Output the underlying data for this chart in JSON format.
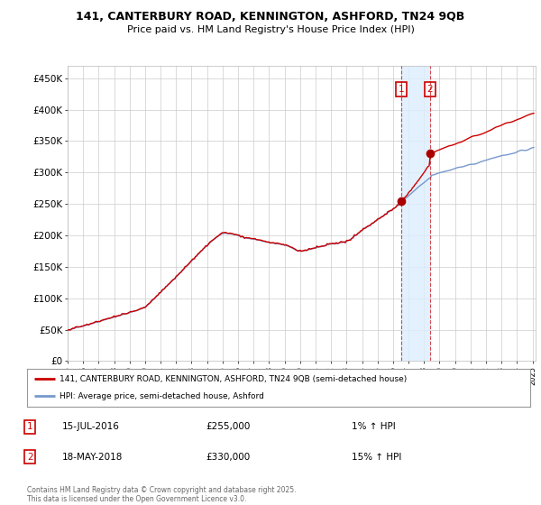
{
  "title1": "141, CANTERBURY ROAD, KENNINGTON, ASHFORD, TN24 9QB",
  "title2": "Price paid vs. HM Land Registry's House Price Index (HPI)",
  "legend_line1": "141, CANTERBURY ROAD, KENNINGTON, ASHFORD, TN24 9QB (semi-detached house)",
  "legend_line2": "HPI: Average price, semi-detached house, Ashford",
  "transaction1_date": "15-JUL-2016",
  "transaction1_price": 255000,
  "transaction1_hpi": "1% ↑ HPI",
  "transaction2_date": "18-MAY-2018",
  "transaction2_price": 330000,
  "transaction2_hpi": "15% ↑ HPI",
  "transaction1_x": 2016.54,
  "transaction2_x": 2018.38,
  "footer": "Contains HM Land Registry data © Crown copyright and database right 2025.\nThis data is licensed under the Open Government Licence v3.0.",
  "price_line_color": "#cc0000",
  "hpi_line_color": "#7799cc",
  "shade_color": "#ddeeff",
  "background_color": "#ffffff",
  "grid_color": "#cccccc",
  "ylim": [
    0,
    470000
  ],
  "xlim": [
    1995.0,
    2025.2
  ],
  "yticks": [
    0,
    50000,
    100000,
    150000,
    200000,
    250000,
    300000,
    350000,
    400000,
    450000
  ],
  "ytick_labels": [
    "£0",
    "£50K",
    "£100K",
    "£150K",
    "£200K",
    "£250K",
    "£300K",
    "£350K",
    "£400K",
    "£450K"
  ]
}
